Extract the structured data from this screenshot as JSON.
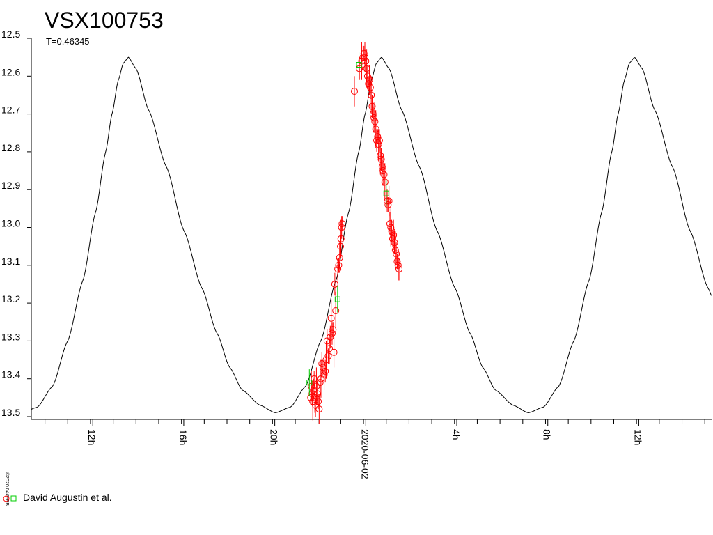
{
  "chart_data": {
    "type": "scatter",
    "title": "VSX100753",
    "subtitle": "T=0.46345",
    "copyright": "©2020 04G-RB",
    "y_inverted": true,
    "ylim": [
      12.5,
      13.5
    ],
    "y_ticks": [
      "12.5",
      "12.6",
      "12.7",
      "12.8",
      "12.9",
      "13.0",
      "13.1",
      "13.2",
      "13.3",
      "13.4",
      "13.5"
    ],
    "x_range_hours": [
      8.4,
      38.3
    ],
    "x_ticks": [
      {
        "hour": 11.1,
        "label": "12h"
      },
      {
        "hour": 15.1,
        "label": "16h"
      },
      {
        "hour": 19.1,
        "label": "20h"
      },
      {
        "hour": 23.1,
        "label": "2020-06-02"
      },
      {
        "hour": 27.1,
        "label": "4h"
      },
      {
        "hour": 31.1,
        "label": "8h"
      },
      {
        "hour": 35.1,
        "label": "12h"
      }
    ],
    "period_hours": 11.1228,
    "model_curve": {
      "phase": [
        0.0,
        0.03,
        0.08,
        0.15,
        0.22,
        0.29,
        0.35,
        0.4,
        0.45,
        0.52,
        0.58,
        0.64,
        0.7,
        0.76,
        0.82,
        0.87,
        0.91,
        0.935,
        0.96,
        0.98,
        1.0
      ],
      "mag": [
        12.55,
        12.58,
        12.69,
        12.84,
        13.01,
        13.16,
        13.28,
        13.37,
        13.43,
        13.47,
        13.49,
        13.475,
        13.42,
        13.3,
        13.14,
        12.96,
        12.8,
        12.7,
        12.61,
        12.565,
        12.55
      ],
      "first_max_hour": 12.67
    },
    "series": [
      {
        "name": "David Augustin et al.",
        "marker": "circle",
        "color": "#ff0000",
        "points": [
          [
            20.68,
            13.45
          ],
          [
            20.71,
            13.42
          ],
          [
            20.74,
            13.44
          ],
          [
            20.77,
            13.46
          ],
          [
            20.8,
            13.43
          ],
          [
            20.83,
            13.4
          ],
          [
            20.86,
            13.45
          ],
          [
            20.89,
            13.47
          ],
          [
            20.93,
            13.42
          ],
          [
            20.97,
            13.44
          ],
          [
            21.01,
            13.46
          ],
          [
            21.05,
            13.48
          ],
          [
            21.09,
            13.41
          ],
          [
            21.13,
            13.4
          ],
          [
            21.17,
            13.36
          ],
          [
            21.22,
            13.37
          ],
          [
            21.27,
            13.39
          ],
          [
            21.32,
            13.38
          ],
          [
            21.36,
            13.35
          ],
          [
            21.4,
            13.3
          ],
          [
            21.45,
            13.34
          ],
          [
            21.5,
            13.32
          ],
          [
            21.54,
            13.29
          ],
          [
            21.58,
            13.24
          ],
          [
            21.62,
            13.28
          ],
          [
            21.66,
            13.27
          ],
          [
            21.7,
            13.33
          ],
          [
            21.74,
            13.15
          ],
          [
            21.78,
            13.22
          ],
          [
            21.87,
            13.11
          ],
          [
            21.91,
            13.1
          ],
          [
            21.95,
            13.08
          ],
          [
            21.99,
            13.05
          ],
          [
            22.01,
            13.03
          ],
          [
            22.04,
            13.0
          ],
          [
            22.06,
            12.99
          ],
          [
            22.6,
            12.64
          ],
          [
            22.82,
            12.58
          ],
          [
            22.92,
            12.56
          ],
          [
            22.98,
            12.55
          ],
          [
            23.02,
            12.54
          ],
          [
            23.06,
            12.55
          ],
          [
            23.1,
            12.56
          ],
          [
            23.14,
            12.58
          ],
          [
            23.18,
            12.6
          ],
          [
            23.22,
            12.62
          ],
          [
            23.26,
            12.61
          ],
          [
            23.3,
            12.63
          ],
          [
            23.34,
            12.65
          ],
          [
            23.38,
            12.68
          ],
          [
            23.42,
            12.7
          ],
          [
            23.46,
            12.71
          ],
          [
            23.5,
            12.72
          ],
          [
            23.54,
            12.74
          ],
          [
            23.58,
            12.77
          ],
          [
            23.62,
            12.76
          ],
          [
            23.66,
            12.78
          ],
          [
            23.7,
            12.77
          ],
          [
            23.74,
            12.81
          ],
          [
            23.78,
            12.82
          ],
          [
            23.82,
            12.84
          ],
          [
            23.86,
            12.85
          ],
          [
            23.9,
            12.86
          ],
          [
            23.94,
            12.88
          ],
          [
            24.04,
            12.93
          ],
          [
            24.08,
            12.94
          ],
          [
            24.12,
            12.93
          ],
          [
            24.16,
            12.99
          ],
          [
            24.2,
            13.0
          ],
          [
            24.24,
            13.01
          ],
          [
            24.28,
            13.03
          ],
          [
            24.32,
            13.02
          ],
          [
            24.36,
            13.04
          ],
          [
            24.4,
            13.06
          ],
          [
            24.44,
            13.07
          ],
          [
            24.48,
            13.09
          ],
          [
            24.52,
            13.1
          ],
          [
            24.56,
            13.11
          ]
        ],
        "error_bars": [
          0.02,
          0.04,
          0.03,
          0.05,
          0.03
        ]
      },
      {
        "name": "",
        "marker": "square",
        "color": "#00cc00",
        "points": [
          [
            20.62,
            13.41
          ],
          [
            21.86,
            13.19
          ],
          [
            22.8,
            12.57
          ],
          [
            24.0,
            12.91
          ]
        ]
      }
    ],
    "legend": {
      "entries": [
        "David Augustin et al."
      ],
      "placement": "bottom-left"
    }
  }
}
